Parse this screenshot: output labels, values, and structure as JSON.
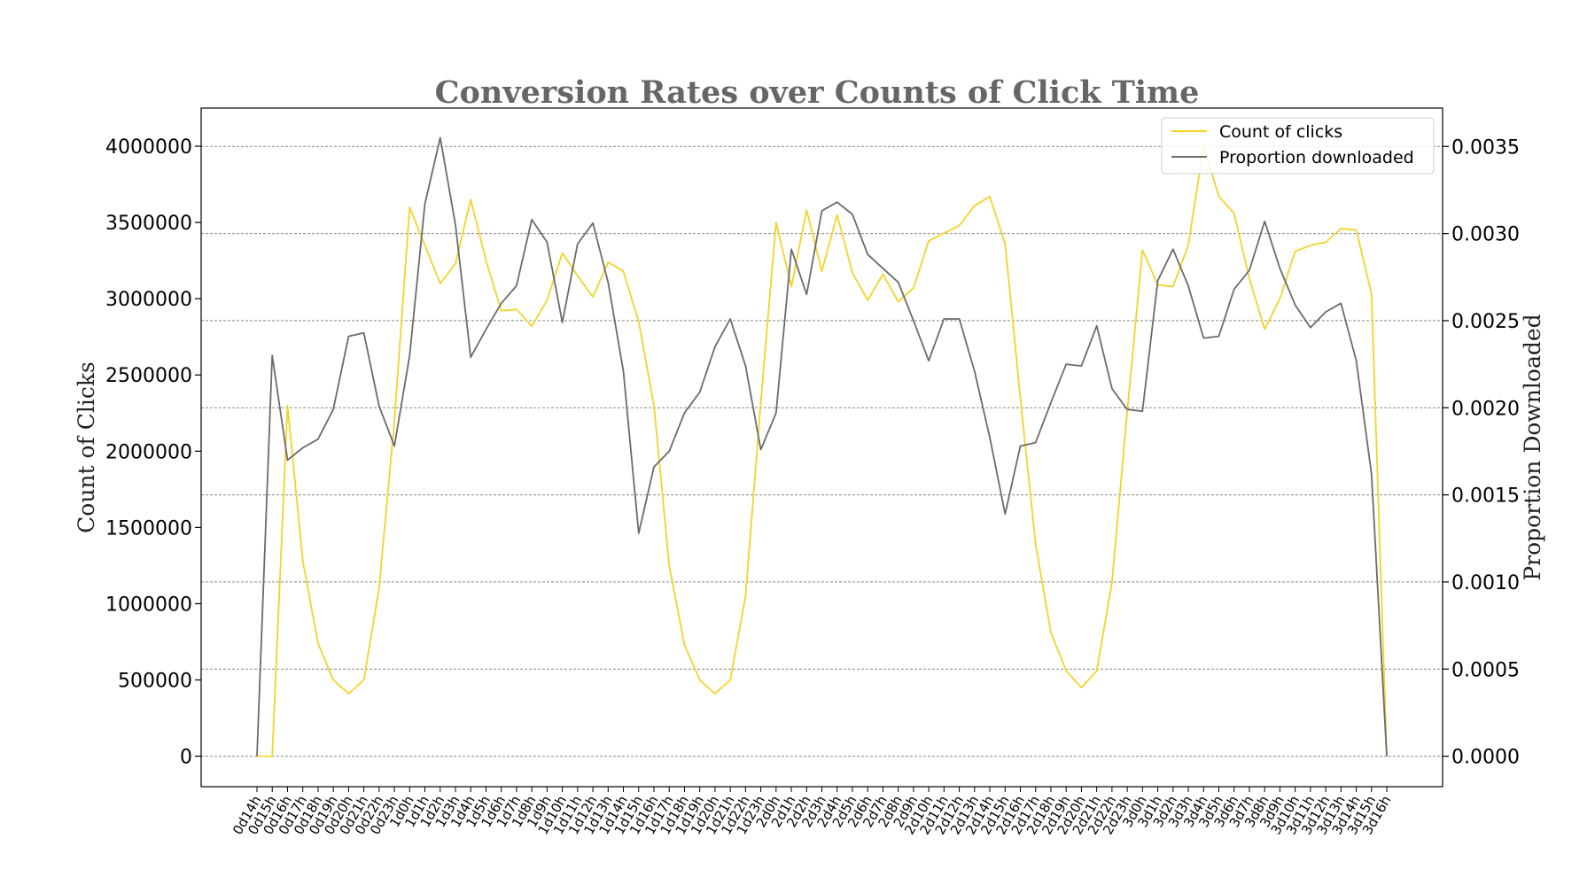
{
  "chart_data": {
    "type": "line",
    "title": "Conversion Rates over Counts of Click Time",
    "xlabel": "",
    "ylabel": "Count of Clicks",
    "y2label": "Proportion Downloaded",
    "ylim": [
      -200000,
      4250000
    ],
    "y2lim": [
      -0.000175,
      0.00372
    ],
    "yticks": [
      0,
      500000,
      1000000,
      1500000,
      2000000,
      2500000,
      3000000,
      3500000,
      4000000
    ],
    "y2ticks": [
      "0.0000",
      "0.0005",
      "0.0010",
      "0.0015",
      "0.0020",
      "0.0025",
      "0.0030",
      "0.0035"
    ],
    "grid": "horizontal dashed lines on secondary axis ticks",
    "legend_position": "top-right",
    "categories": [
      "0d14h",
      "0d15h",
      "0d16h",
      "0d17h",
      "0d18h",
      "0d19h",
      "0d20h",
      "0d21h",
      "0d22h",
      "0d23h",
      "1d0h",
      "1d1h",
      "1d2h",
      "1d3h",
      "1d4h",
      "1d5h",
      "1d6h",
      "1d7h",
      "1d8h",
      "1d9h",
      "1d10h",
      "1d11h",
      "1d12h",
      "1d13h",
      "1d14h",
      "1d15h",
      "1d16h",
      "1d17h",
      "1d18h",
      "1d19h",
      "1d20h",
      "1d21h",
      "1d22h",
      "1d23h",
      "2d0h",
      "2d1h",
      "2d2h",
      "2d3h",
      "2d4h",
      "2d5h",
      "2d6h",
      "2d7h",
      "2d8h",
      "2d9h",
      "2d10h",
      "2d11h",
      "2d12h",
      "2d13h",
      "2d14h",
      "2d15h",
      "2d16h",
      "2d17h",
      "2d18h",
      "2d19h",
      "2d20h",
      "2d21h",
      "2d22h",
      "2d23h",
      "3d0h",
      "3d1h",
      "3d2h",
      "3d3h",
      "3d4h",
      "3d5h",
      "3d6h",
      "3d7h",
      "3d8h",
      "3d9h",
      "3d10h",
      "3d11h",
      "3d12h",
      "3d13h",
      "3d14h",
      "3d15h",
      "3d16h"
    ],
    "series": [
      {
        "name": "Count of clicks",
        "axis": "left",
        "color": "#f5d328",
        "values": [
          0,
          0,
          2300000,
          1280000,
          740000,
          500000,
          410000,
          500000,
          1100000,
          2200000,
          3600000,
          3350000,
          3100000,
          3230000,
          3650000,
          3250000,
          2920000,
          2930000,
          2820000,
          2990000,
          3300000,
          3150000,
          3010000,
          3240000,
          3180000,
          2850000,
          2300000,
          1250000,
          730000,
          500000,
          410000,
          500000,
          1050000,
          2320000,
          3500000,
          3080000,
          3580000,
          3180000,
          3550000,
          3170000,
          2990000,
          3160000,
          2980000,
          3070000,
          3380000,
          3430000,
          3480000,
          3610000,
          3670000,
          3360000,
          2350000,
          1390000,
          810000,
          560000,
          450000,
          560000,
          1140000,
          2260000,
          3320000,
          3090000,
          3080000,
          3350000,
          4000000,
          3670000,
          3560000,
          3130000,
          2800000,
          3000000,
          3310000,
          3350000,
          3370000,
          3460000,
          3450000,
          3030000,
          0
        ]
      },
      {
        "name": "Proportion downloaded",
        "axis": "right",
        "color": "#6b6b6b",
        "values": [
          0,
          0.0023,
          0.0017,
          0.00177,
          0.00182,
          0.00199,
          0.00241,
          0.00243,
          0.00201,
          0.00178,
          0.0023,
          0.00317,
          0.00355,
          0.00305,
          0.00229,
          0.00245,
          0.0026,
          0.0027,
          0.00308,
          0.00295,
          0.00249,
          0.00294,
          0.00306,
          0.00272,
          0.00221,
          0.00128,
          0.00166,
          0.00175,
          0.00197,
          0.00209,
          0.00235,
          0.00251,
          0.00224,
          0.00176,
          0.00197,
          0.00291,
          0.00265,
          0.00313,
          0.00318,
          0.00311,
          0.00288,
          0.0028,
          0.00272,
          0.0025,
          0.00227,
          0.00251,
          0.00251,
          0.00221,
          0.00183,
          0.00139,
          0.00178,
          0.0018,
          0.00203,
          0.00225,
          0.00224,
          0.00247,
          0.00211,
          0.00199,
          0.00198,
          0.00273,
          0.00291,
          0.0027,
          0.0024,
          0.00241,
          0.00268,
          0.00279,
          0.00307,
          0.0028,
          0.00259,
          0.00246,
          0.00255,
          0.0026,
          0.00227,
          0.00162,
          0
        ]
      }
    ]
  }
}
